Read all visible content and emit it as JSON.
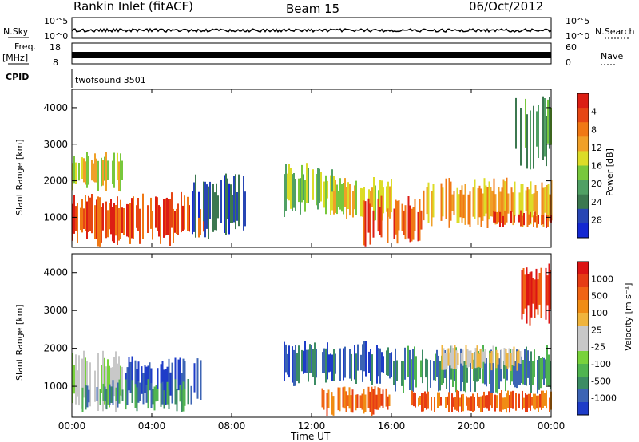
{
  "header": {
    "station": "Rankin Inlet (fitACF)",
    "beam": "Beam 15",
    "date": "06/Oct/2012"
  },
  "status_panels": {
    "nsky_label": "N.Sky",
    "nsky_ticks": [
      "10^5",
      "10^0"
    ],
    "nsearch_label": "N.Search",
    "freq_label_1": "Freq.",
    "freq_label_2": "[MHz]",
    "freq_ticks": [
      "18",
      "8"
    ],
    "nave_label": "Nave",
    "nave_ticks": [
      "60",
      "0"
    ],
    "cpid_label": "CPID",
    "cpid_value": "twofsound 3501"
  },
  "chart_data": [
    {
      "type": "heatmap",
      "name": "power",
      "ylabel": "Slant Range [km]",
      "xlabel": "",
      "x_ticks": [
        "00:00",
        "04:00",
        "08:00",
        "12:00",
        "16:00",
        "20:00",
        "00:00"
      ],
      "y_ticks": [
        "1000",
        "2000",
        "3000",
        "4000"
      ],
      "ylim": [
        180,
        4500
      ],
      "xlim_hours": [
        0,
        24
      ],
      "colorbar": {
        "label": "Power [dB]",
        "ticks": [
          "4",
          "8",
          "12",
          "16",
          "20",
          "24",
          "28"
        ],
        "colors": [
          "#1428d2",
          "#2846b4",
          "#3c7850",
          "#50a064",
          "#78c83c",
          "#dcdc28",
          "#f0a028",
          "#f07814",
          "#e64614",
          "#dc1e14"
        ]
      },
      "regions": [
        {
          "t0": 0.0,
          "t1": 6.6,
          "r0": 200,
          "r1": 1700,
          "level": 8
        },
        {
          "t0": 0.0,
          "t1": 2.5,
          "r0": 1700,
          "r1": 2800,
          "level": 5
        },
        {
          "t0": 6.0,
          "t1": 8.8,
          "r0": 400,
          "r1": 2200,
          "level": 1
        },
        {
          "t0": 10.6,
          "t1": 13.2,
          "r0": 1000,
          "r1": 2500,
          "level": 4
        },
        {
          "t0": 13.0,
          "t1": 16.0,
          "r0": 900,
          "r1": 2100,
          "level": 5
        },
        {
          "t0": 14.5,
          "t1": 17.5,
          "r0": 200,
          "r1": 1600,
          "level": 8
        },
        {
          "t0": 17.5,
          "t1": 24.0,
          "r0": 700,
          "r1": 2100,
          "level": 6
        },
        {
          "t0": 21.0,
          "t1": 24.0,
          "r0": 700,
          "r1": 1200,
          "level": 8
        },
        {
          "t0": 22.2,
          "t1": 24.0,
          "r0": 2300,
          "r1": 4400,
          "level": 3
        }
      ]
    },
    {
      "type": "heatmap",
      "name": "velocity",
      "ylabel": "Slant Range [km]",
      "xlabel": "Time UT",
      "x_ticks": [
        "00:00",
        "04:00",
        "08:00",
        "12:00",
        "16:00",
        "20:00",
        "00:00"
      ],
      "y_ticks": [
        "1000",
        "2000",
        "3000",
        "4000"
      ],
      "ylim": [
        180,
        4500
      ],
      "xlim_hours": [
        0,
        24
      ],
      "colorbar": {
        "label": "Velocity [m s⁻¹]",
        "ticks": [
          "1000",
          "500",
          "100",
          "25",
          "-25",
          "-100",
          "-500",
          "-1000"
        ],
        "colors": [
          "#1e3cc8",
          "#3c64b4",
          "#3c8c64",
          "#50b450",
          "#78d23c",
          "#c8c8c8",
          "#c8c8c8",
          "#f0b43c",
          "#f08c14",
          "#f06414",
          "#e63c14",
          "#dc1414"
        ]
      },
      "regions": [
        {
          "t0": 0.0,
          "t1": 2.5,
          "r0": 300,
          "r1": 2000,
          "level": 5
        },
        {
          "t0": 2.5,
          "t1": 6.5,
          "r0": 500,
          "r1": 1800,
          "level": 0
        },
        {
          "t0": 0.5,
          "t1": 6.0,
          "r0": 300,
          "r1": 1200,
          "level": 2
        },
        {
          "t0": 10.6,
          "t1": 16.0,
          "r0": 1000,
          "r1": 2200,
          "level": 1
        },
        {
          "t0": 12.5,
          "t1": 16.0,
          "r0": 200,
          "r1": 1000,
          "level": 9
        },
        {
          "t0": 16.0,
          "t1": 24.0,
          "r0": 800,
          "r1": 2100,
          "level": 2
        },
        {
          "t0": 18.5,
          "t1": 22.5,
          "r0": 1400,
          "r1": 2100,
          "level": 6
        },
        {
          "t0": 17.0,
          "t1": 24.0,
          "r0": 300,
          "r1": 900,
          "level": 9
        },
        {
          "t0": 22.5,
          "t1": 24.0,
          "r0": 2600,
          "r1": 4300,
          "level": 10
        }
      ]
    }
  ]
}
